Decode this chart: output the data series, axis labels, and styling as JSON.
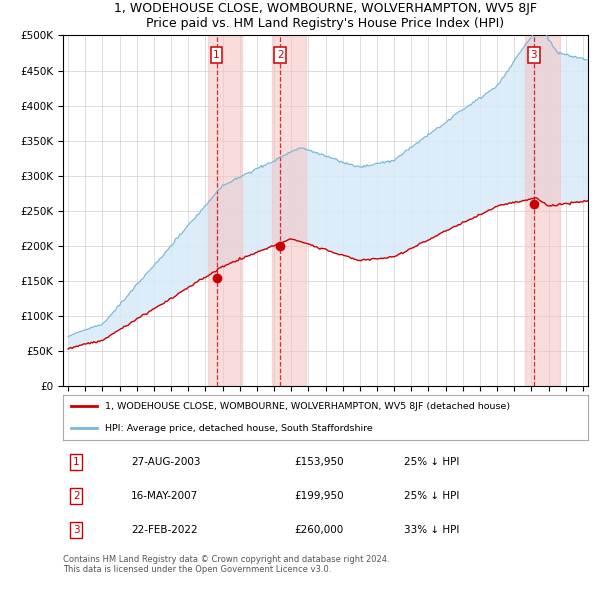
{
  "title": "1, WODEHOUSE CLOSE, WOMBOURNE, WOLVERHAMPTON, WV5 8JF",
  "subtitle": "Price paid vs. HM Land Registry's House Price Index (HPI)",
  "sale_dates_num": [
    2003.65,
    2007.37,
    2022.14
  ],
  "sale_prices": [
    153950,
    199950,
    260000
  ],
  "sale_labels": [
    "1",
    "2",
    "3"
  ],
  "sale_date_strs": [
    "27-AUG-2003",
    "16-MAY-2007",
    "22-FEB-2022"
  ],
  "sale_price_strs": [
    "£153,950",
    "£199,950",
    "£260,000"
  ],
  "sale_hpi_strs": [
    "25% ↓ HPI",
    "25% ↓ HPI",
    "33% ↓ HPI"
  ],
  "legend_line1": "1, WODEHOUSE CLOSE, WOMBOURNE, WOLVERHAMPTON, WV5 8JF (detached house)",
  "legend_line2": "HPI: Average price, detached house, South Staffordshire",
  "footer1": "Contains HM Land Registry data © Crown copyright and database right 2024.",
  "footer2": "This data is licensed under the Open Government Licence v3.0.",
  "hpi_line_color": "#7ab8d8",
  "hpi_fill_color": "#d6eaf8",
  "price_color": "#cc0000",
  "shade_color_red": "#f5c6c6",
  "box_color": "#cc0000",
  "ylim": [
    0,
    500000
  ],
  "yticks": [
    0,
    50000,
    100000,
    150000,
    200000,
    250000,
    300000,
    350000,
    400000,
    450000,
    500000
  ],
  "xlim_start": 1994.7,
  "xlim_end": 2025.3
}
